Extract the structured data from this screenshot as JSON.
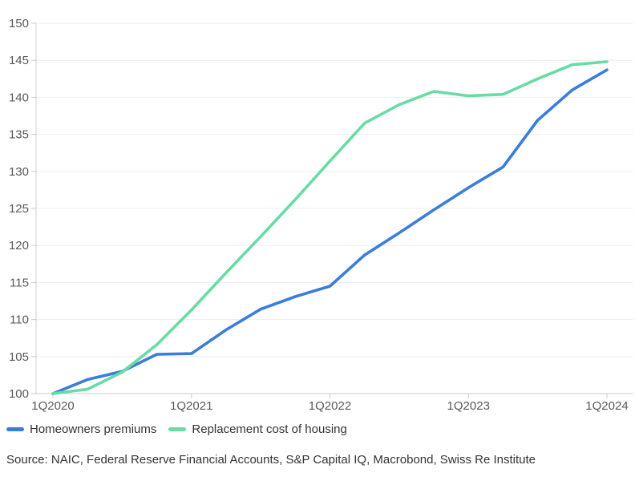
{
  "chart_data": {
    "type": "line",
    "title": "",
    "xlabel": "",
    "ylabel": "",
    "ylim": [
      100,
      150
    ],
    "y_tick_step": 5,
    "grid": true,
    "legend_position": "bottom-left",
    "categories": [
      "1Q2020",
      "2Q2020",
      "3Q2020",
      "4Q2020",
      "1Q2021",
      "2Q2021",
      "3Q2021",
      "4Q2021",
      "1Q2022",
      "2Q2022",
      "3Q2022",
      "4Q2022",
      "1Q2023",
      "2Q2023",
      "3Q2023",
      "4Q2023",
      "1Q2024"
    ],
    "x_tick_indices": [
      0,
      4,
      8,
      12,
      16
    ],
    "x_tick_labels": [
      "1Q2020",
      "1Q2021",
      "1Q2022",
      "1Q2023",
      "1Q2024"
    ],
    "series": [
      {
        "name": "Homeowners premiums",
        "color": "#3C7DD9",
        "values": [
          100,
          101.9,
          103.0,
          105.3,
          105.4,
          108.6,
          111.4,
          113.1,
          114.5,
          118.7,
          121.7,
          124.8,
          127.8,
          130.6,
          136.9,
          141.0,
          143.7
        ]
      },
      {
        "name": "Replacement cost of housing",
        "color": "#69DBA5",
        "values": [
          100,
          100.6,
          102.9,
          106.6,
          111.3,
          116.3,
          121.2,
          126.2,
          131.4,
          136.5,
          139.0,
          140.8,
          140.2,
          140.4,
          142.5,
          144.4,
          144.8
        ]
      }
    ],
    "axis_color": "#CCCCCC",
    "gridline_color": "#EDEDED",
    "axis_label_color": "#595959"
  },
  "legend": {
    "items": [
      {
        "label": "Homeowners premiums"
      },
      {
        "label": "Replacement cost of housing"
      }
    ]
  },
  "source": {
    "text": "Source: NAIC, Federal Reserve Financial Accounts, S&P Capital IQ, Macrobond, Swiss Re Institute"
  }
}
